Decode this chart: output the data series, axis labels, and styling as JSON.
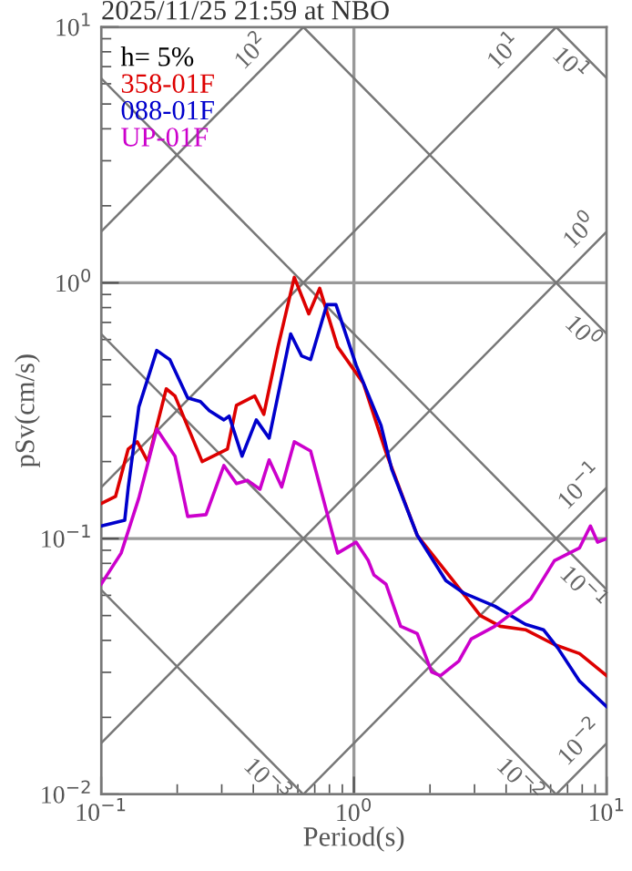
{
  "chart_data": {
    "type": "line",
    "title": "2025/11/25 21:59 at NBO",
    "xlabel": "Period(s)",
    "ylabel": "pSv(cm/s)",
    "legend_title": "h= 5%",
    "legend": "top left",
    "log": "xy",
    "grid": true,
    "xlim": [
      0.1,
      10
    ],
    "ylim": [
      0.01,
      10
    ],
    "xticks": [
      {
        "value": 0.1,
        "label": "10$^{−1}$"
      },
      {
        "value": 1,
        "label": "10$^{0}$"
      },
      {
        "value": 10,
        "label": "10$^{1}$"
      }
    ],
    "yticks": [
      {
        "value": 0.01,
        "label": "10$^{−2}$"
      },
      {
        "value": 0.1,
        "label": "10$^{−1}$"
      },
      {
        "value": 1,
        "label": "10$^{0}$"
      },
      {
        "value": 10,
        "label": "10$^{1}$"
      }
    ],
    "series": [
      {
        "color": "#777777",
        "x": [
          0.1,
          0.631
        ],
        "values": [
          1.585,
          10
        ]
      },
      {
        "color": "#777777",
        "x": [
          0.1,
          6.31
        ],
        "values": [
          0.1585,
          10
        ]
      },
      {
        "color": "#777777",
        "x": [
          0.1,
          10
        ],
        "values": [
          0.01585,
          1.585
        ]
      },
      {
        "color": "#777777",
        "x": [
          0.631,
          10
        ],
        "values": [
          0.01,
          0.1585
        ]
      },
      {
        "color": "#777777",
        "x": [
          6.31,
          10
        ],
        "values": [
          0.01,
          0.01585
        ]
      },
      {
        "color": "#777777",
        "x": [
          6.31,
          10
        ],
        "values": [
          10,
          6.31
        ]
      },
      {
        "color": "#777777",
        "x": [
          0.631,
          10
        ],
        "values": [
          10,
          0.631
        ]
      },
      {
        "color": "#777777",
        "x": [
          0.1,
          10
        ],
        "values": [
          6.31,
          0.0631
        ]
      },
      {
        "color": "#777777",
        "x": [
          0.1,
          6.31
        ],
        "values": [
          0.631,
          0.01
        ]
      },
      {
        "color": "#777777",
        "x": [
          0.1,
          0.631
        ],
        "values": [
          0.0631,
          0.01
        ]
      },
      {
        "name": "358-01F",
        "color": "#dd0000",
        "x": [
          0.1,
          0.114,
          0.128,
          0.139,
          0.153,
          0.181,
          0.196,
          0.251,
          0.316,
          0.343,
          0.405,
          0.44,
          0.501,
          0.581,
          0.663,
          0.732,
          0.862,
          1.09,
          1.34,
          1.78,
          2.47,
          3.16,
          3.79,
          4.77,
          6.21,
          7.81,
          10
        ],
        "values": [
          0.137,
          0.146,
          0.224,
          0.239,
          0.2,
          0.385,
          0.361,
          0.2,
          0.224,
          0.332,
          0.361,
          0.306,
          0.562,
          1.05,
          0.756,
          0.952,
          0.562,
          0.405,
          0.217,
          0.103,
          0.0685,
          0.05,
          0.0454,
          0.044,
          0.0385,
          0.0355,
          0.0291
        ]
      },
      {
        "name": "088-01F",
        "color": "#0000cc",
        "x": [
          0.1,
          0.124,
          0.128,
          0.141,
          0.166,
          0.187,
          0.22,
          0.247,
          0.268,
          0.306,
          0.321,
          0.361,
          0.411,
          0.462,
          0.562,
          0.621,
          0.674,
          0.781,
          0.849,
          1.02,
          1.28,
          1.41,
          1.78,
          2.31,
          2.73,
          3.61,
          4.77,
          5.62,
          6.41,
          7.81,
          10
        ],
        "values": [
          0.112,
          0.118,
          0.158,
          0.327,
          0.544,
          0.501,
          0.355,
          0.343,
          0.316,
          0.291,
          0.301,
          0.21,
          0.291,
          0.247,
          0.631,
          0.518,
          0.501,
          0.821,
          0.821,
          0.477,
          0.277,
          0.187,
          0.103,
          0.0685,
          0.0611,
          0.0544,
          0.0462,
          0.044,
          0.0373,
          0.0277,
          0.022
        ]
      },
      {
        "name": "UP-01F",
        "color": "#cc00cc",
        "x": [
          0.1,
          0.12,
          0.141,
          0.166,
          0.196,
          0.22,
          0.26,
          0.306,
          0.343,
          0.379,
          0.425,
          0.462,
          0.518,
          0.581,
          0.674,
          0.862,
          1.02,
          1.14,
          1.2,
          1.34,
          1.53,
          1.78,
          2.03,
          2.2,
          2.6,
          2.91,
          3.61,
          5.01,
          6.21,
          7.81,
          8.62,
          9.2,
          10
        ],
        "values": [
          0.0663,
          0.0877,
          0.144,
          0.268,
          0.21,
          0.122,
          0.124,
          0.193,
          0.164,
          0.169,
          0.156,
          0.203,
          0.159,
          0.239,
          0.22,
          0.0877,
          0.0968,
          0.082,
          0.072,
          0.0663,
          0.0454,
          0.0425,
          0.0301,
          0.0291,
          0.0332,
          0.0405,
          0.0454,
          0.0581,
          0.082,
          0.092,
          0.112,
          0.0968,
          0.1
        ]
      }
    ],
    "annotations": [
      {
        "text": "10$^{2}$",
        "x": 0.447,
        "y": 7.08
      },
      {
        "text": "10$^{1}$",
        "x": 4.47,
        "y": 7.08
      },
      {
        "text": "10$^{0}$",
        "x": 8.91,
        "y": 1.41
      },
      {
        "text": "10$^{−1}$",
        "x": 8.91,
        "y": 0.141
      },
      {
        "text": "10$^{−2}$",
        "x": 8.91,
        "y": 0.0141
      },
      {
        "text": "10$^{1}$",
        "x": 7.94,
        "y": 7.94
      },
      {
        "text": "10$^{0}$",
        "x": 8.91,
        "y": 0.708
      },
      {
        "text": "10$^{−1}$",
        "x": 8.91,
        "y": 0.0708
      },
      {
        "text": "10$^{−2}$",
        "x": 5.01,
        "y": 0.0126
      },
      {
        "text": "10$^{−3}$",
        "x": 0.501,
        "y": 0.0126
      }
    ]
  }
}
